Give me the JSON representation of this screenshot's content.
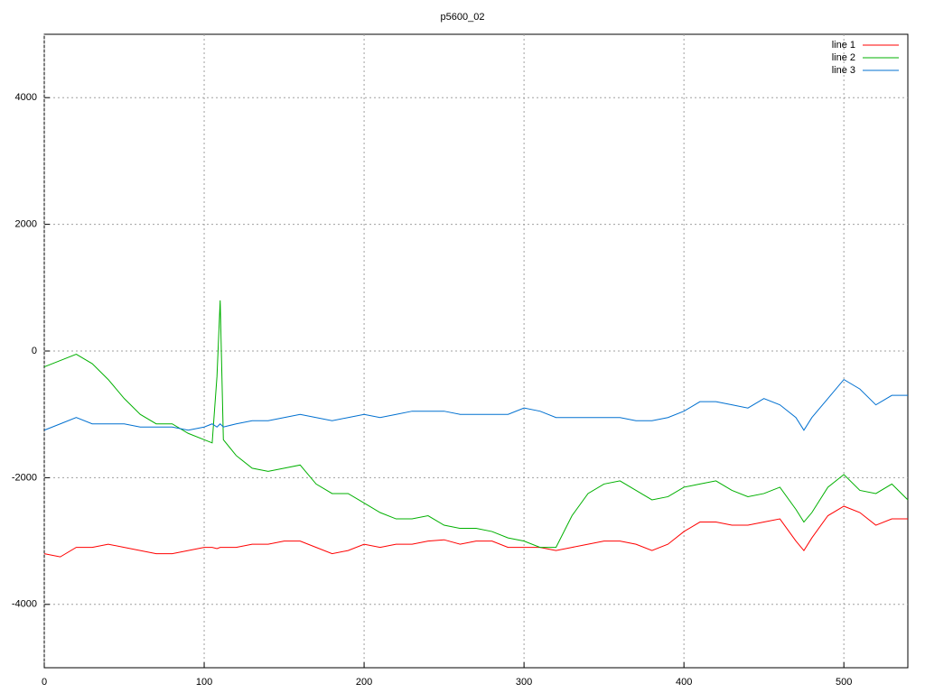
{
  "chart_data": {
    "type": "line",
    "title": "p5600_02",
    "x": [
      0,
      10,
      20,
      30,
      40,
      50,
      60,
      70,
      80,
      90,
      100,
      105,
      108,
      110,
      112,
      120,
      130,
      140,
      150,
      160,
      170,
      180,
      190,
      200,
      210,
      220,
      230,
      240,
      250,
      260,
      270,
      280,
      290,
      300,
      310,
      320,
      330,
      340,
      350,
      360,
      370,
      380,
      390,
      400,
      410,
      420,
      430,
      440,
      450,
      460,
      470,
      475,
      480,
      490,
      500,
      510,
      520,
      530,
      540
    ],
    "series": [
      {
        "name": "line 1",
        "color": "#ff0000",
        "values": [
          -3200,
          -3250,
          -3100,
          -3100,
          -3050,
          -3100,
          -3150,
          -3200,
          -3200,
          -3150,
          -3100,
          -3100,
          -3120,
          -3100,
          -3100,
          -3100,
          -3050,
          -3050,
          -3000,
          -3000,
          -3100,
          -3200,
          -3150,
          -3050,
          -3100,
          -3050,
          -3050,
          -3000,
          -2980,
          -3050,
          -3000,
          -3000,
          -3100,
          -3100,
          -3100,
          -3150,
          -3100,
          -3050,
          -3000,
          -3000,
          -3050,
          -3150,
          -3050,
          -2850,
          -2700,
          -2700,
          -2750,
          -2750,
          -2700,
          -2650,
          -3000,
          -3150,
          -2950,
          -2600,
          -2450,
          -2550,
          -2750,
          -2650,
          -2650
        ]
      },
      {
        "name": "line 2",
        "color": "#00b000",
        "values": [
          -250,
          -150,
          -50,
          -200,
          -450,
          -750,
          -1000,
          -1150,
          -1150,
          -1300,
          -1400,
          -1450,
          -400,
          800,
          -1400,
          -1650,
          -1850,
          -1900,
          -1850,
          -1800,
          -2100,
          -2250,
          -2250,
          -2400,
          -2550,
          -2650,
          -2650,
          -2600,
          -2750,
          -2800,
          -2800,
          -2850,
          -2950,
          -3000,
          -3100,
          -3100,
          -2600,
          -2250,
          -2100,
          -2050,
          -2200,
          -2350,
          -2300,
          -2150,
          -2100,
          -2050,
          -2200,
          -2300,
          -2250,
          -2150,
          -2500,
          -2700,
          -2550,
          -2150,
          -1950,
          -2200,
          -2250,
          -2100,
          -2350
        ]
      },
      {
        "name": "line 3",
        "color": "#0070d0",
        "values": [
          -1250,
          -1150,
          -1050,
          -1150,
          -1150,
          -1150,
          -1200,
          -1200,
          -1200,
          -1250,
          -1200,
          -1150,
          -1200,
          -1150,
          -1200,
          -1150,
          -1100,
          -1100,
          -1050,
          -1000,
          -1050,
          -1100,
          -1050,
          -1000,
          -1050,
          -1000,
          -950,
          -950,
          -950,
          -1000,
          -1000,
          -1000,
          -1000,
          -900,
          -950,
          -1050,
          -1050,
          -1050,
          -1050,
          -1050,
          -1100,
          -1100,
          -1050,
          -950,
          -800,
          -800,
          -850,
          -900,
          -750,
          -850,
          -1050,
          -1250,
          -1050,
          -750,
          -450,
          -600,
          -850,
          -700,
          -700
        ]
      }
    ],
    "xlim": [
      0,
      540
    ],
    "ylim": [
      -5000,
      5000
    ],
    "xticks": [
      0,
      100,
      200,
      300,
      400,
      500
    ],
    "yticks": [
      -4000,
      -2000,
      0,
      2000,
      4000
    ],
    "grid": true,
    "legend": "top-right"
  }
}
